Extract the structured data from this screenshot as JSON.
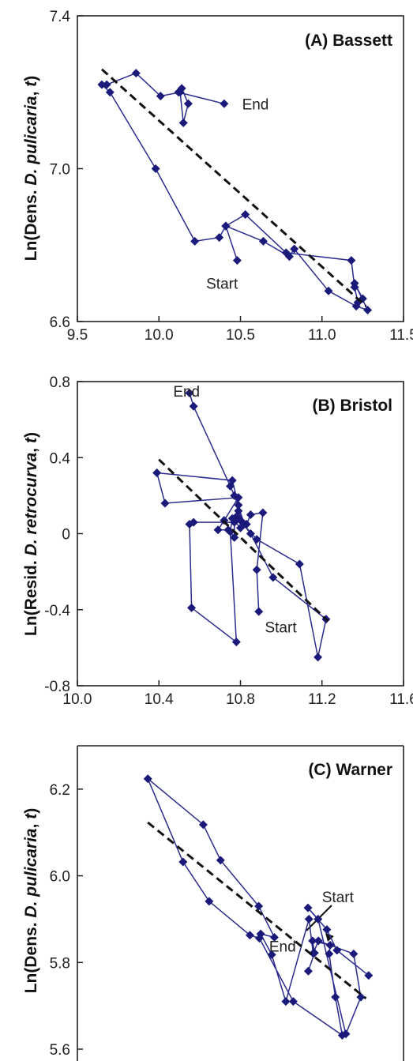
{
  "chart_data": [
    {
      "type": "scatter",
      "title": "(A) Bassett",
      "ylabel_prefix": "Ln(Dens. ",
      "ylabel_species": "D. pulicaria",
      "ylabel_mid": ", ",
      "ylabel_t": "t",
      "ylabel_suffix": ")",
      "xlim": [
        9.5,
        11.5
      ],
      "ylim": [
        6.6,
        7.4
      ],
      "xticks": [
        "9.5",
        "10.0",
        "10.5",
        "11.0",
        "11.5"
      ],
      "yticks": [
        "6.6",
        "7.0",
        "7.4"
      ],
      "series": [
        {
          "x": [
            10.48,
            10.41,
            10.37,
            10.22,
            9.98,
            9.7,
            9.65,
            9.68,
            9.86,
            10.01,
            10.13,
            10.15,
            10.18,
            10.14,
            10.12,
            10.4
          ],
          "y": [
            6.76,
            6.85,
            6.82,
            6.81,
            7.0,
            7.2,
            7.22,
            7.22,
            7.25,
            7.19,
            7.2,
            7.12,
            7.17,
            7.21,
            7.2,
            7.17
          ]
        },
        {
          "x": [
            10.41,
            10.53,
            10.78,
            11.18,
            11.2,
            11.22,
            11.25,
            11.2,
            11.28,
            11.21,
            11.04,
            10.83,
            10.8,
            10.64,
            10.41
          ],
          "y": [
            6.85,
            6.88,
            6.78,
            6.76,
            6.69,
            6.65,
            6.66,
            6.7,
            6.63,
            6.64,
            6.68,
            6.79,
            6.77,
            6.81,
            6.85
          ]
        }
      ],
      "trendline": {
        "x": [
          9.65,
          11.27
        ],
        "y": [
          7.26,
          6.64
        ]
      },
      "annotations": [
        {
          "text": "End",
          "x": 10.51,
          "y": 7.17
        },
        {
          "text": "Start",
          "x": 10.29,
          "y": 6.7
        }
      ]
    },
    {
      "type": "scatter",
      "title": "(B) Bristol",
      "ylabel_prefix": "Ln(Resid. ",
      "ylabel_species": "D. retrocurva",
      "ylabel_mid": ", ",
      "ylabel_t": "t",
      "ylabel_suffix": ")",
      "xlim": [
        10.0,
        11.6
      ],
      "ylim": [
        -0.8,
        0.8
      ],
      "xticks": [
        "10.0",
        "10.4",
        "10.8",
        "11.2",
        "11.6"
      ],
      "yticks": [
        "-0.8",
        "-0.4",
        "0",
        "0.4",
        "0.8"
      ],
      "series": [
        {
          "x": [
            10.89,
            10.88,
            10.91,
            10.85,
            10.83,
            10.8,
            10.76,
            10.75,
            10.78,
            10.56,
            10.55,
            10.57,
            10.77,
            10.77,
            10.74,
            10.69,
            10.72,
            10.79,
            10.43,
            10.39,
            10.76,
            10.79,
            10.8,
            10.85,
            10.96,
            11.22,
            11.18,
            11.09,
            10.88,
            10.78,
            10.79,
            10.82,
            10.77,
            10.75,
            10.57,
            10.55
          ],
          "y": [
            -0.41,
            -0.19,
            0.11,
            0.1,
            0.05,
            0.03,
            0.08,
            0.01,
            -0.57,
            -0.39,
            0.05,
            0.06,
            0.06,
            -0.02,
            0.02,
            0.02,
            0.07,
            0.19,
            0.16,
            0.32,
            0.28,
            0.15,
            0.07,
            0.0,
            -0.23,
            -0.45,
            -0.65,
            -0.16,
            -0.03,
            0.09,
            0.12,
            0.05,
            0.2,
            0.25,
            0.67,
            0.74
          ]
        }
      ],
      "trendline": {
        "x": [
          10.4,
          11.23
        ],
        "y": [
          0.39,
          -0.46
        ]
      },
      "annotations": [
        {
          "text": "End",
          "x": 10.47,
          "y": 0.75
        },
        {
          "text": "Start",
          "x": 10.92,
          "y": -0.49
        }
      ]
    },
    {
      "type": "scatter",
      "title": "(C) Warner",
      "ylabel_prefix": "Ln(Dens. ",
      "ylabel_species": "D. pulicaria",
      "ylabel_mid": ", ",
      "ylabel_t": "t",
      "ylabel_suffix": ")",
      "xlim": [
        0,
        1
      ],
      "ylim": [
        5.6,
        6.3
      ],
      "xticks": [],
      "yticks": [
        "5.6",
        "5.8",
        "6.0",
        "6.2"
      ],
      "series": [
        {
          "x": [
            0.893,
            0.796,
            0.765,
            0.707,
            0.738,
            0.823,
            0.869,
            0.847,
            0.739,
            0.723,
            0.71,
            0.639,
            0.596,
            0.562,
            0.604,
            0.556,
            0.439,
            0.386,
            0.216,
            0.324,
            0.404,
            0.529,
            0.558,
            0.662,
            0.812,
            0.791,
            0.772,
            0.775,
            0.721,
            0.727,
            0.708
          ],
          "y": [
            5.77,
            5.828,
            5.876,
            5.926,
            5.9,
            5.635,
            5.72,
            5.82,
            5.85,
            5.821,
            5.9,
            5.71,
            5.818,
            5.866,
            5.858,
            5.93,
            6.036,
            6.118,
            6.224,
            6.032,
            5.941,
            5.863,
            5.856,
            5.71,
            5.632,
            5.72,
            5.82,
            5.84,
            5.85,
            5.822,
            5.78
          ]
        }
      ],
      "trendline": {
        "x": [
          0.216,
          0.885
        ],
        "y": [
          6.123,
          5.717
        ]
      },
      "annotations": [
        {
          "text": "Start",
          "x": 0.75,
          "y": 5.952
        },
        {
          "text": "End",
          "x": 0.588,
          "y": 5.838
        }
      ]
    }
  ]
}
